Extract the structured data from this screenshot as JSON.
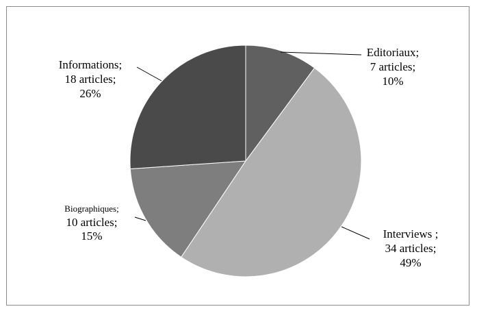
{
  "chart_data": {
    "type": "pie",
    "start_angle_deg": 0,
    "direction": "clockwise",
    "slices": [
      {
        "category": "Editoriaux",
        "count": 7,
        "count_text": "7 articles;",
        "percent": 10,
        "percent_text": "10%",
        "label_line1": "Editoriaux;",
        "color": "#606060"
      },
      {
        "category": "Interviews",
        "count": 34,
        "count_text": "34 articles;",
        "percent": 49,
        "percent_text": "49%",
        "label_line1": "Interviews ;",
        "color": "#b0b0b0"
      },
      {
        "category": "Biographiques",
        "count": 10,
        "count_text": "10 articles;",
        "percent": 15,
        "percent_text": "15%",
        "label_line1": "Biographiques;",
        "color": "#7e7e7e"
      },
      {
        "category": "Informations",
        "count": 18,
        "count_text": "18 articles;",
        "percent": 26,
        "percent_text": "26%",
        "label_line1": "Informations;",
        "color": "#4a4a4a"
      }
    ]
  }
}
